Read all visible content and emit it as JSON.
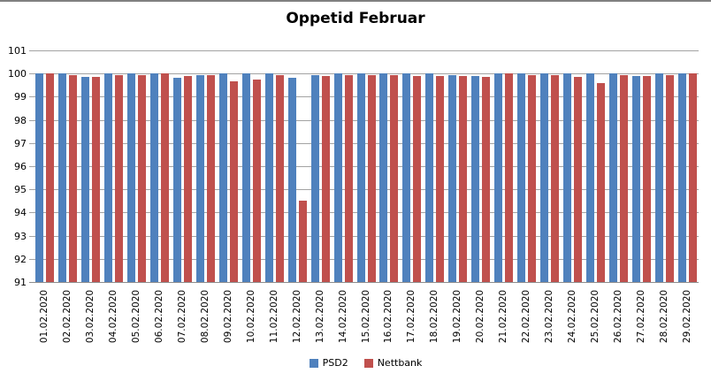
{
  "chart_data": {
    "type": "bar",
    "title": "Oppetid Februar",
    "categories": [
      "01.02.2020",
      "02.02.2020",
      "03.02.2020",
      "04.02.2020",
      "05.02.2020",
      "06.02.2020",
      "07.02.2020",
      "08.02.2020",
      "09.02.2020",
      "10.02.2020",
      "11.02.2020",
      "12.02.2020",
      "13.02.2020",
      "14.02.2020",
      "15.02.2020",
      "16.02.2020",
      "17.02.2020",
      "18.02.2020",
      "19.02.2020",
      "20.02.2020",
      "21.02.2020",
      "22.02.2020",
      "23.02.2020",
      "24.02.2020",
      "25.02.2020",
      "26.02.2020",
      "27.02.2020",
      "28.02.2020",
      "29.02.2020"
    ],
    "series": [
      {
        "name": "PSD2",
        "color": "#4F81BD",
        "values": [
          100,
          100,
          99.85,
          100,
          100,
          100,
          99.8,
          99.95,
          100,
          100,
          100,
          99.8,
          99.95,
          100,
          100,
          100,
          100,
          100,
          99.95,
          99.9,
          100,
          100,
          100,
          100,
          100,
          100,
          99.9,
          100,
          100
        ]
      },
      {
        "name": "Nettbank",
        "color": "#C0504D",
        "values": [
          100,
          99.95,
          99.85,
          99.95,
          99.95,
          100,
          99.9,
          99.95,
          99.65,
          99.75,
          99.95,
          94.5,
          99.9,
          99.95,
          99.95,
          99.95,
          99.9,
          99.9,
          99.9,
          99.85,
          100,
          99.95,
          99.95,
          99.85,
          99.6,
          99.95,
          99.9,
          99.95,
          100
        ]
      }
    ],
    "ylim": [
      91,
      101
    ],
    "yticks": [
      91,
      92,
      93,
      94,
      95,
      96,
      97,
      98,
      99,
      100,
      101
    ],
    "grid": true,
    "legend_position": "bottom",
    "colors": {
      "gridline": "#A3A3A3",
      "axis_line": "#8C8C8C",
      "top_border": "#808080",
      "text": "#000000",
      "background": "#FFFFFF"
    }
  }
}
